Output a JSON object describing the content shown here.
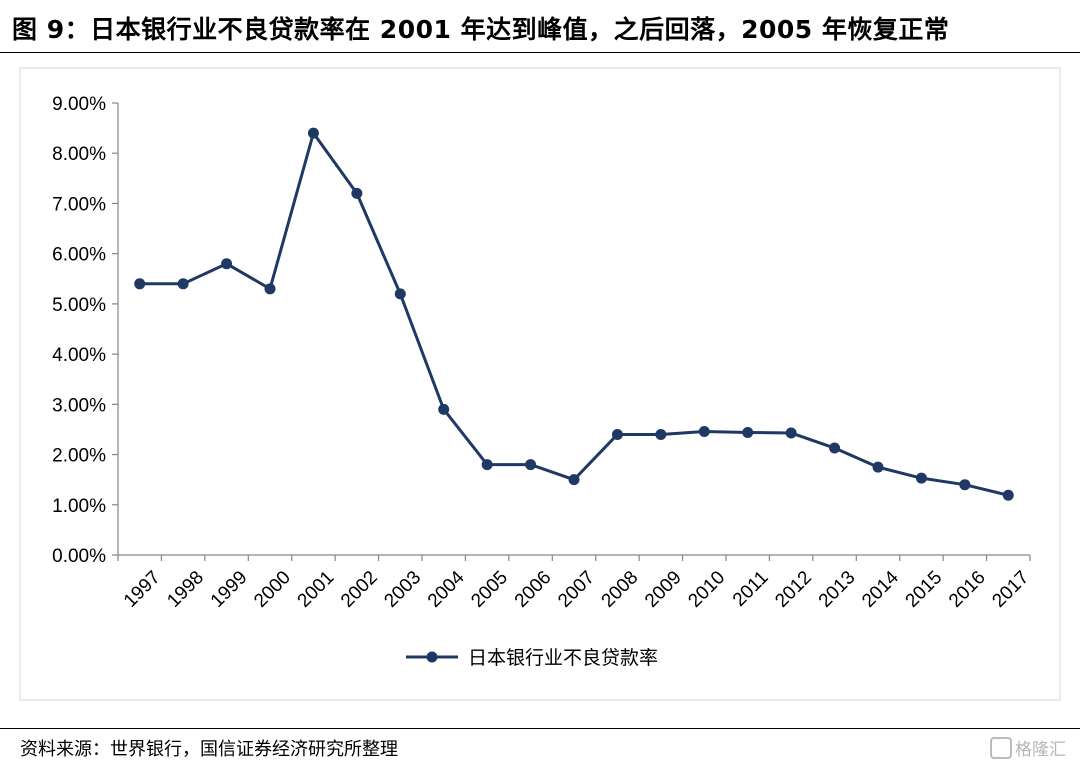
{
  "title": "图 9：日本银行业不良贷款率在 2001 年达到峰值，之后回落，2005 年恢复正常",
  "source": "资料来源：世界银行，国信证券经济研究所整理",
  "watermark": "格隆汇",
  "chart_data": {
    "type": "line",
    "categories": [
      "1997",
      "1998",
      "1999",
      "2000",
      "2001",
      "2002",
      "2003",
      "2004",
      "2005",
      "2006",
      "2007",
      "2008",
      "2009",
      "2010",
      "2011",
      "2012",
      "2013",
      "2014",
      "2015",
      "2016",
      "2017"
    ],
    "series": [
      {
        "name": "日本银行业不良贷款率",
        "values": [
          5.4,
          5.4,
          5.8,
          5.3,
          8.4,
          7.2,
          5.2,
          2.9,
          1.8,
          1.8,
          1.5,
          2.4,
          2.4,
          2.46,
          2.44,
          2.43,
          2.13,
          1.75,
          1.53,
          1.4,
          1.19
        ]
      }
    ],
    "ylim": [
      0,
      9
    ],
    "yticks": [
      "0.00%",
      "1.00%",
      "2.00%",
      "3.00%",
      "4.00%",
      "5.00%",
      "6.00%",
      "7.00%",
      "8.00%",
      "9.00%"
    ],
    "legend_position": "bottom",
    "grid": false,
    "line_color": "#1f3864"
  }
}
